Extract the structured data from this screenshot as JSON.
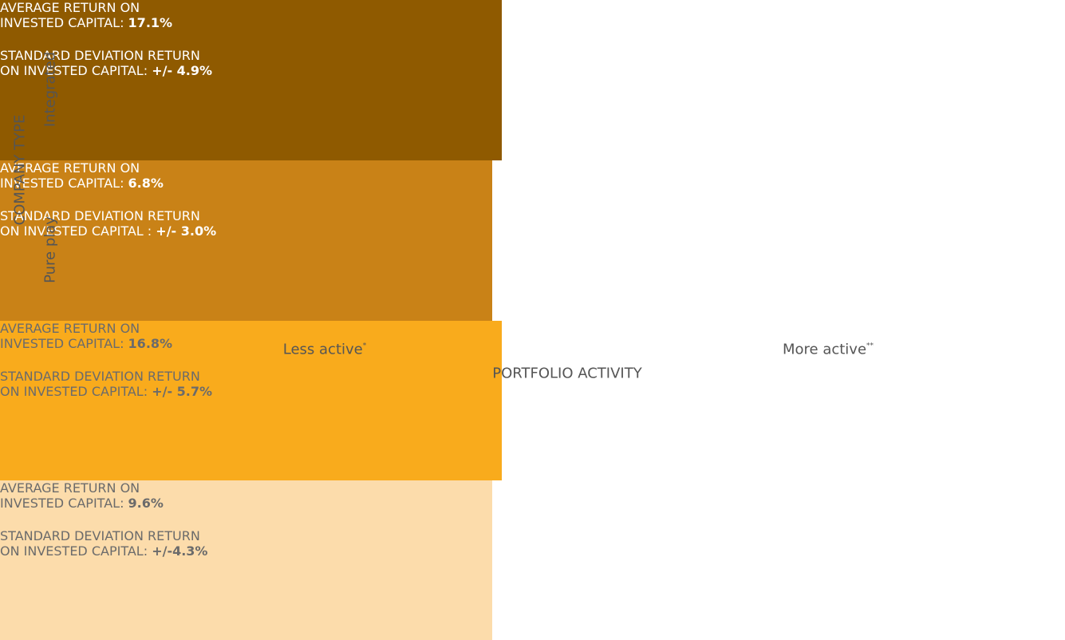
{
  "y_axis": {
    "title": "COMPANY TYPE",
    "rows": [
      "Integrated",
      "Pure play"
    ]
  },
  "x_axis": {
    "title": "PORTFOLIO ACTIVITY",
    "columns": [
      {
        "label": "Less active",
        "note": "*"
      },
      {
        "label": "More active",
        "note": "**"
      }
    ]
  },
  "cells": [
    {
      "color": "#8f5a00",
      "text_color": "#ffffff",
      "avg_line1": "AVERAGE RETURN ON",
      "avg_line2": "INVESTED CAPITAL: ",
      "avg_value": "17.1%",
      "sd_line1": "STANDARD DEVIATION RETURN",
      "sd_line2": "ON INVESTED CAPITAL: ",
      "sd_value": "+/- 4.9%"
    },
    {
      "color": "#c98217",
      "text_color": "#ffffff",
      "avg_line1": "AVERAGE RETURN ON",
      "avg_line2": "INVESTED CAPITAL: ",
      "avg_value": "6.8%",
      "sd_line1": "STANDARD DEVIATION RETURN",
      "sd_line2": "ON INVESTED CAPITAL : ",
      "sd_value": "+/- 3.0%"
    },
    {
      "color": "#f9ab1c",
      "text_color": "#6b6b6b",
      "avg_line1": "AVERAGE RETURN ON",
      "avg_line2": "INVESTED CAPITAL: ",
      "avg_value": "16.8%",
      "sd_line1": "STANDARD DEVIATION RETURN",
      "sd_line2": "ON INVESTED CAPITAL: ",
      "sd_value": "+/- 5.7%"
    },
    {
      "color": "#fcdcab",
      "text_color": "#6b6b6b",
      "avg_line1": "AVERAGE RETURN ON",
      "avg_line2": "INVESTED CAPITAL: ",
      "avg_value": "9.6%",
      "sd_line1": "STANDARD DEVIATION RETURN",
      "sd_line2": "ON INVESTED CAPITAL: ",
      "sd_value": "+/-4.3%"
    }
  ]
}
